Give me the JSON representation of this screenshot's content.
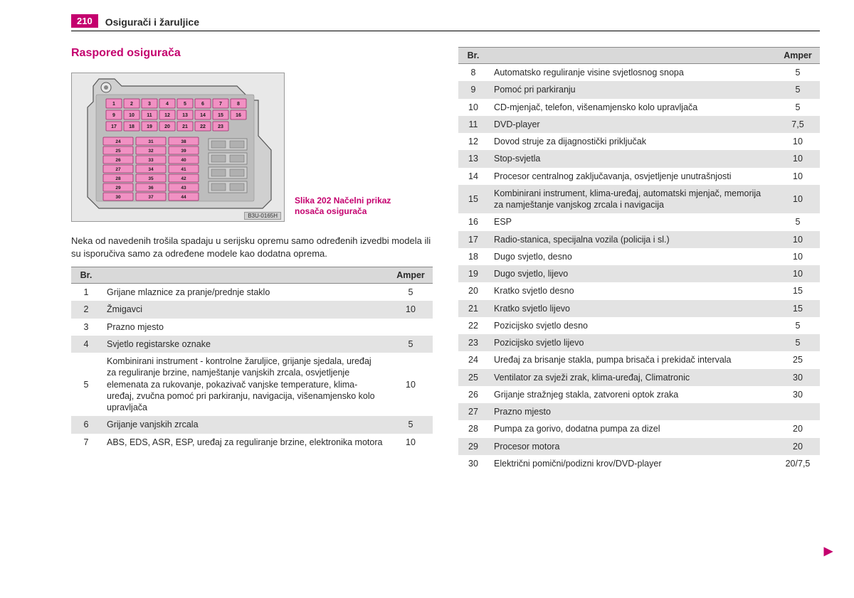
{
  "page_number": "210",
  "chapter_title": "Osigurači i žaruljice",
  "section_title": "Raspored osigurača",
  "figure": {
    "caption_line1": "Slika 202   Načelni prikaz",
    "caption_line2": "nosača osigurača",
    "code": "B3U-0165H",
    "group_a": [
      1,
      2,
      3,
      4,
      5,
      6,
      7,
      8,
      9,
      10,
      11,
      12,
      13,
      14,
      15,
      16,
      17,
      18,
      19,
      20,
      21,
      22,
      23
    ],
    "group_b_rows": [
      [
        24,
        31,
        38
      ],
      [
        25,
        32,
        39
      ],
      [
        26,
        33,
        40
      ],
      [
        27,
        34,
        41
      ],
      [
        28,
        35,
        42
      ],
      [
        29,
        36,
        43
      ],
      [
        30,
        37,
        44
      ]
    ],
    "colors": {
      "fuse_fill": "#f191c3",
      "fuse_stroke": "#9c2a6a",
      "panel_fill": "#d0d0d0",
      "panel_stroke": "#555555",
      "inner_fill": "#bdbdbd",
      "text": "#1a1a1a"
    }
  },
  "intro_text": "Neka od navedenih trošila spadaju u serijsku opremu samo određenih izvedbi modela ili su isporučiva samo za određene modele kao dodatna oprema.",
  "table_headers": {
    "br": "Br.",
    "desc": "",
    "amp": "Amper"
  },
  "left_rows": [
    {
      "br": "1",
      "desc": "Grijane mlaznice za pranje/prednje staklo",
      "amp": "5"
    },
    {
      "br": "2",
      "desc": "Žmigavci",
      "amp": "10"
    },
    {
      "br": "3",
      "desc": "Prazno mjesto",
      "amp": ""
    },
    {
      "br": "4",
      "desc": "Svjetlo registarske oznake",
      "amp": "5"
    },
    {
      "br": "5",
      "desc": "Kombinirani instrument - kontrolne žaruljice, grijanje sjedala, uređaj za reguliranje brzine, namještanje vanjskih zrcala, osvjetljenje elemenata za rukovanje, pokazivač vanjske temperature, klima-uređaj, zvučna pomoć pri parkiranju, navigacija, višenamjensko kolo upravljača",
      "amp": "10"
    },
    {
      "br": "6",
      "desc": "Grijanje vanjskih zrcala",
      "amp": "5"
    },
    {
      "br": "7",
      "desc": "ABS, EDS, ASR, ESP, uređaj za reguliranje brzine, elektronika motora",
      "amp": "10"
    }
  ],
  "right_rows": [
    {
      "br": "8",
      "desc": "Automatsko reguliranje visine svjetlosnog snopa",
      "amp": "5"
    },
    {
      "br": "9",
      "desc": "Pomoć pri parkiranju",
      "amp": "5"
    },
    {
      "br": "10",
      "desc": "CD-mjenjač, telefon, višenamjensko kolo upravljača",
      "amp": "5"
    },
    {
      "br": "11",
      "desc": "DVD-player",
      "amp": "7,5"
    },
    {
      "br": "12",
      "desc": "Dovod struje za dijagnostički priključak",
      "amp": "10"
    },
    {
      "br": "13",
      "desc": "Stop-svjetla",
      "amp": "10"
    },
    {
      "br": "14",
      "desc": "Procesor centralnog zaključavanja, osvjetljenje unutrašnjosti",
      "amp": "10"
    },
    {
      "br": "15",
      "desc": "Kombinirani instrument, klima-uređaj, automatski mjenjač, memorija za namještanje vanjskog zrcala i navigacija",
      "amp": "10"
    },
    {
      "br": "16",
      "desc": "ESP",
      "amp": "5"
    },
    {
      "br": "17",
      "desc": "Radio-stanica, specijalna vozila (policija i sl.)",
      "amp": "10"
    },
    {
      "br": "18",
      "desc": "Dugo svjetlo, desno",
      "amp": "10"
    },
    {
      "br": "19",
      "desc": "Dugo svjetlo, lijevo",
      "amp": "10"
    },
    {
      "br": "20",
      "desc": "Kratko svjetlo desno",
      "amp": "15"
    },
    {
      "br": "21",
      "desc": "Kratko svjetlo lijevo",
      "amp": "15"
    },
    {
      "br": "22",
      "desc": "Pozicijsko svjetlo desno",
      "amp": "5"
    },
    {
      "br": "23",
      "desc": "Pozicijsko svjetlo lijevo",
      "amp": "5"
    },
    {
      "br": "24",
      "desc": "Uređaj za brisanje stakla, pumpa brisača i prekidač intervala",
      "amp": "25"
    },
    {
      "br": "25",
      "desc": "Ventilator za svježi zrak, klima-uređaj, Climatronic",
      "amp": "30"
    },
    {
      "br": "26",
      "desc": "Grijanje stražnjeg stakla, zatvoreni optok zraka",
      "amp": "30"
    },
    {
      "br": "27",
      "desc": "Prazno mjesto",
      "amp": ""
    },
    {
      "br": "28",
      "desc": "Pumpa za gorivo, dodatna pumpa za dizel",
      "amp": "20"
    },
    {
      "br": "29",
      "desc": "Procesor motora",
      "amp": "20"
    },
    {
      "br": "30",
      "desc": "Električni pomični/podizni krov/DVD-player",
      "amp": "20/7,5"
    }
  ],
  "continue_arrow": "▶"
}
